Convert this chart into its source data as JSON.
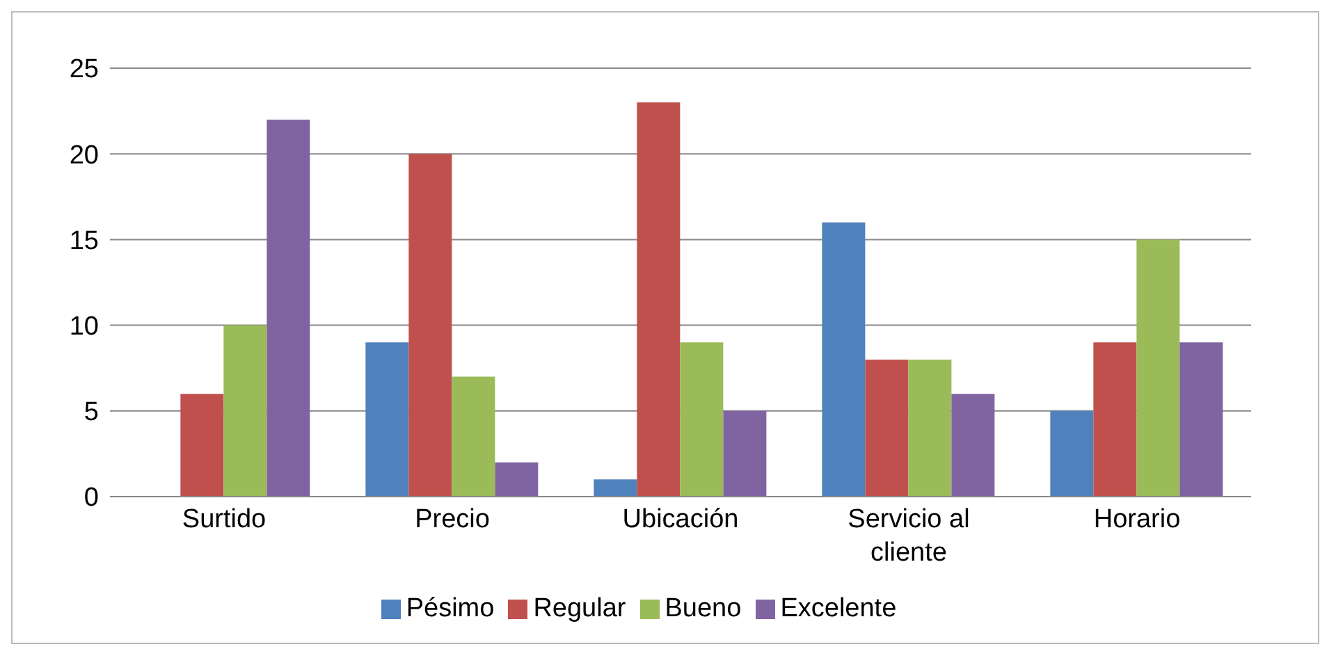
{
  "chart_data": {
    "type": "bar",
    "categories": [
      "Surtido",
      "Precio",
      "Ubicación",
      "Servicio al cliente",
      "Horario"
    ],
    "series": [
      {
        "name": "Pésimo",
        "color": "#4f81bd",
        "values": [
          0,
          9,
          1,
          16,
          5
        ]
      },
      {
        "name": "Regular",
        "color": "#c0504d",
        "values": [
          6,
          20,
          23,
          8,
          9
        ]
      },
      {
        "name": "Bueno",
        "color": "#9bbb59",
        "values": [
          10,
          7,
          9,
          8,
          15
        ]
      },
      {
        "name": "Excelente",
        "color": "#8064a2",
        "values": [
          22,
          2,
          5,
          6,
          9
        ]
      }
    ],
    "ylim": [
      0,
      25
    ],
    "yticks": [
      0,
      5,
      10,
      15,
      20,
      25
    ],
    "grid": "y",
    "legend": "bottom"
  }
}
